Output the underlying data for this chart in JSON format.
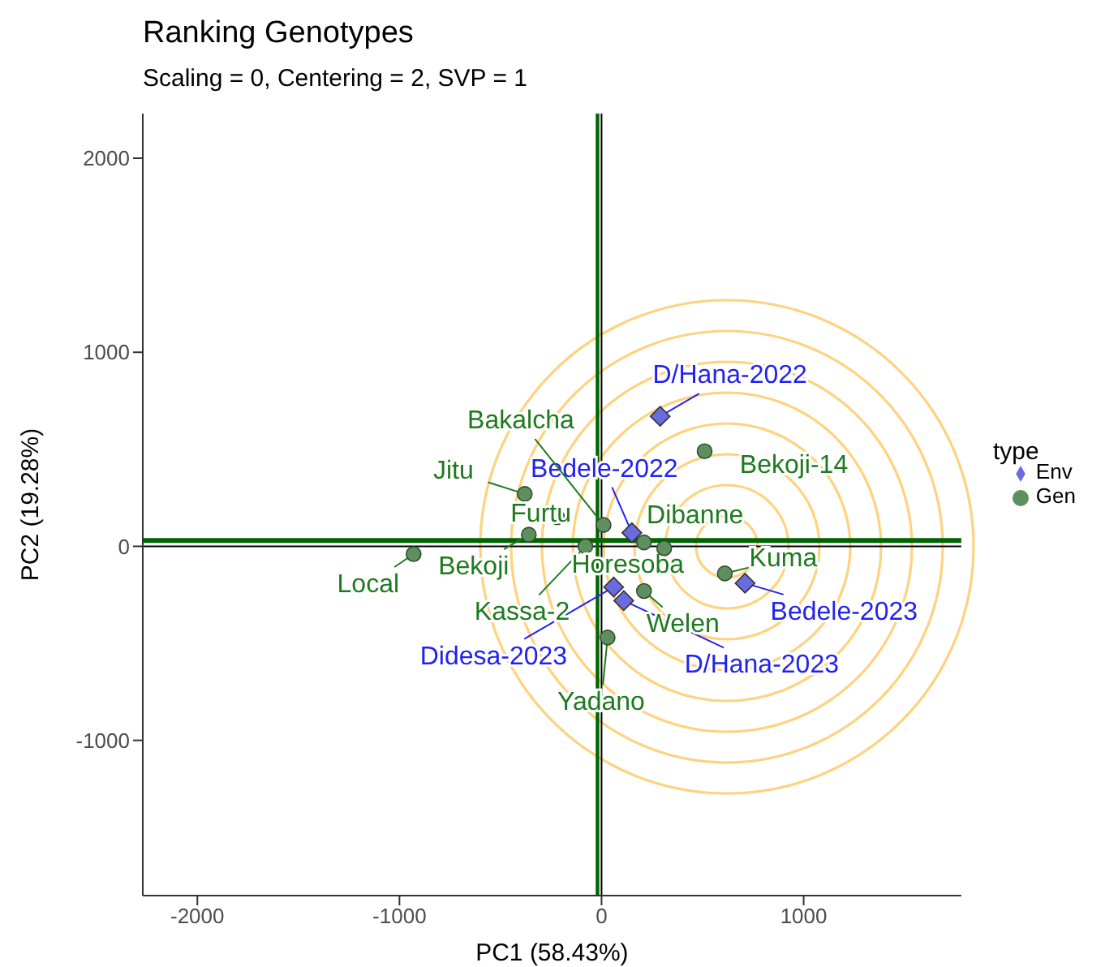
{
  "chart_data": {
    "type": "scatter",
    "title": "Ranking Genotypes",
    "subtitle": "Scaling = 0, Centering = 2, SVP = 1",
    "xlabel": "PC1 (58.43%)",
    "ylabel": "PC2 (19.28%)",
    "legend_title": "type",
    "legend": "right",
    "xlim": [
      -2270,
      1780
    ],
    "ylim": [
      -1800,
      2230
    ],
    "xticks": [
      -2000,
      -1000,
      0,
      1000
    ],
    "yticks": [
      -1000,
      0,
      1000,
      2000
    ],
    "ref_lines": [
      {
        "axis": "x",
        "value": 0,
        "label": null,
        "color": "#000000"
      },
      {
        "axis": "y",
        "value": 0,
        "label": null,
        "color": "#000000"
      },
      {
        "axis": "x",
        "value": -20,
        "label": null,
        "color": "#006400"
      },
      {
        "axis": "y",
        "value": 30,
        "label": null,
        "color": "#006400"
      }
    ],
    "series": [
      {
        "name": "Env",
        "color": "#6b6be0",
        "marker": "diamond",
        "x": [
          290,
          150,
          710,
          60,
          110
        ],
        "values": [
          670,
          70,
          -190,
          -210,
          -280
        ],
        "value_labels": [
          "D/Hana-2022",
          "Bedele-2022",
          "Bedele-2023",
          "Didesa-2023",
          "D/Hana-2023"
        ]
      },
      {
        "name": "Gen",
        "color": "#5f8f5f",
        "marker": "circle",
        "x": [
          -930,
          -360,
          -380,
          -220,
          -80,
          10,
          210,
          310,
          510,
          610,
          210,
          30
        ],
        "values": [
          -40,
          60,
          270,
          150,
          0,
          110,
          20,
          -10,
          490,
          -140,
          -230,
          -470
        ],
        "value_labels": [
          "Local",
          "Bekoji",
          "Jitu",
          "Furtu",
          "Kassa-2",
          "Bakalcha",
          "Horesoba",
          "Dibanne",
          "Bekoji-14",
          "Kuma",
          "Welen",
          "Yadano"
        ]
      }
    ]
  }
}
